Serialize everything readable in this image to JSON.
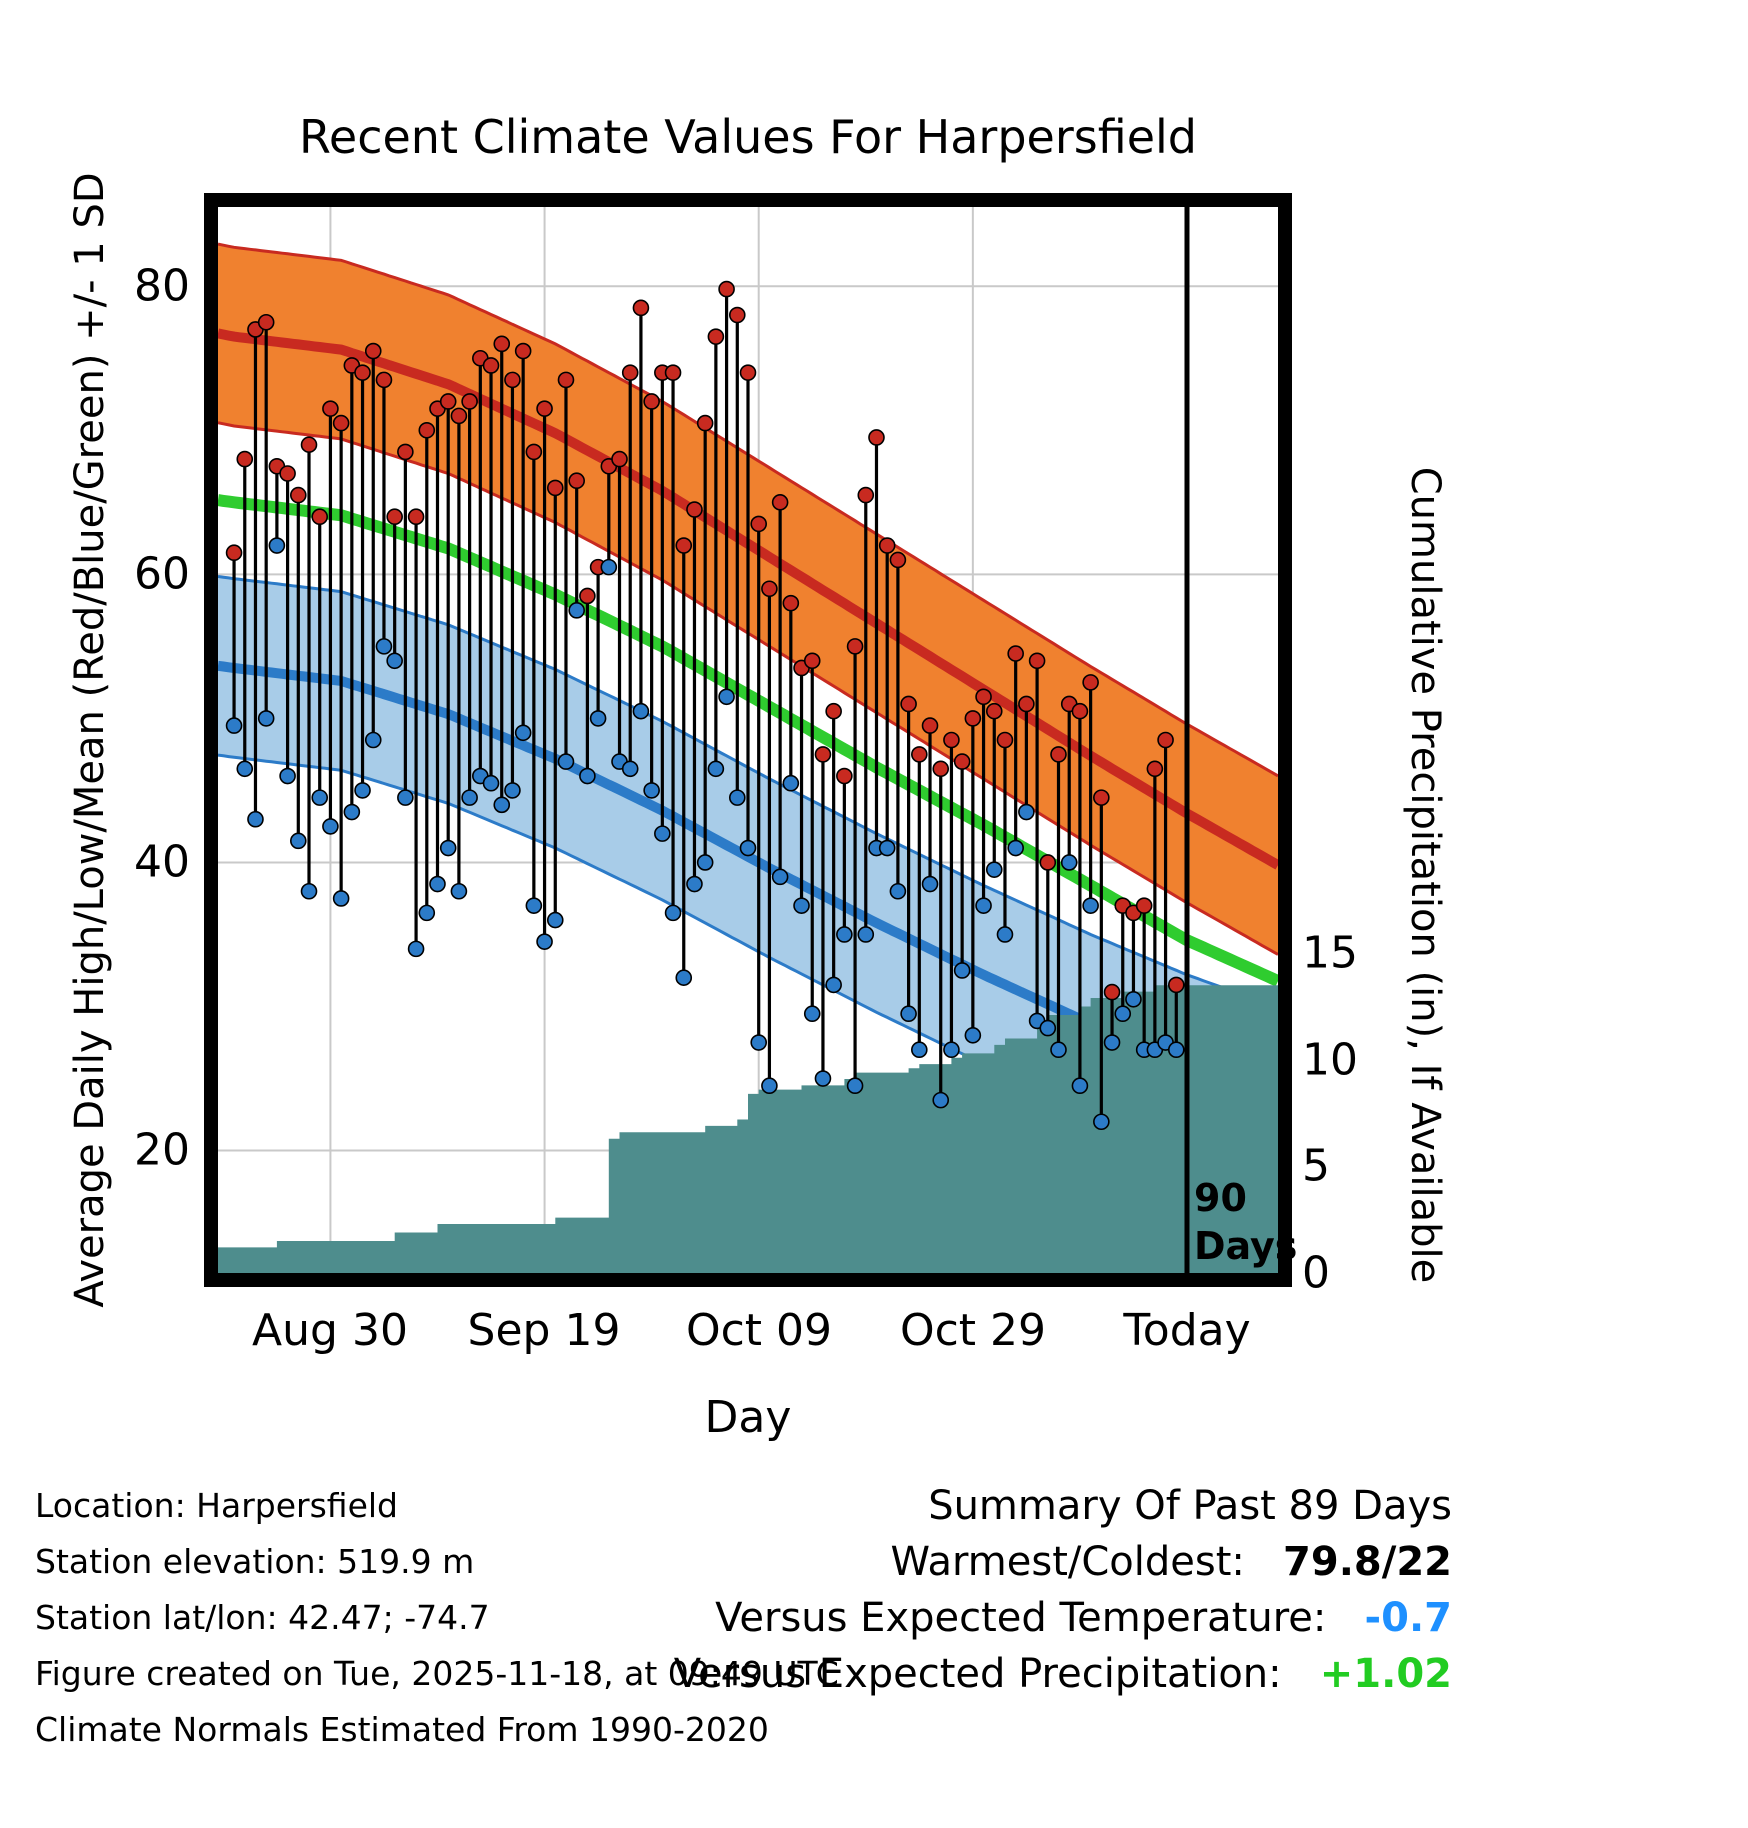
{
  "title": "Recent Climate Values For Harpersfield",
  "axes": {
    "y_left_label": "Average Daily High/Low/Mean (Red/Blue/Green) +/- 1 SD",
    "y_right_label": "Cumulative Precipitation (in), If Available",
    "x_label": "Day",
    "x_ticks": [
      "Aug 30",
      "Sep 19",
      "Oct 09",
      "Oct 29",
      "Today"
    ],
    "y_left_ticks": [
      "80",
      "60",
      "40",
      "20"
    ],
    "y_right_ticks": [
      "15",
      "10",
      "5",
      "0"
    ]
  },
  "annotations": {
    "marker_line1": "90",
    "marker_line2": "Days"
  },
  "footer_left": {
    "lines": [
      "Location: Harpersfield",
      "Station elevation: 519.9 m",
      "Station lat/lon: 42.47; -74.7",
      "Figure created on Tue, 2025-11-18, at 09:49 UTC",
      "Climate Normals Estimated From 1990-2020"
    ]
  },
  "summary": {
    "title": "Summary Of Past 89 Days",
    "warmest_coldest_label": "Warmest/Coldest:",
    "warmest_coldest_value": "79.8/22",
    "vs_temp_label": "Versus Expected Temperature:",
    "vs_temp_value": "-0.7",
    "vs_precip_label": "Versus Expected Precipitation:",
    "vs_precip_value": "+1.02"
  },
  "colors": {
    "high_band": "#F0812F",
    "high_line": "#C82A20",
    "low_band": "#A8CCE8",
    "low_line": "#2C7BC8",
    "mean_line": "#2FCC2F",
    "precip_fill": "#4E8D8D",
    "grid": "#C9C9C9",
    "bar": "#000000",
    "high_dot": "#C82A20",
    "low_dot": "#2C7BC8",
    "today_line": "#000000",
    "vs_temp_value_color": "#1E90FF",
    "vs_precip_value_color": "#22CC22"
  },
  "chart_data": {
    "type": "line",
    "title": "Recent Climate Values For Harpersfield",
    "xlabel": "Day",
    "ylabel_left": "Average Daily High/Low/Mean (Red/Blue/Green) +/- 1 SD",
    "ylabel_right": "Cumulative Precipitation (in), If Available",
    "x_range": [
      -1.5,
      97.5
    ],
    "temp_range": [
      11.5,
      85.5
    ],
    "precip_range": [
      0,
      50
    ],
    "x_tick_days": [
      9,
      29,
      49,
      69,
      89
    ],
    "x_tick_labels": [
      "Aug 30",
      "Sep 19",
      "Oct 09",
      "Oct 29",
      "Today"
    ],
    "temp_ticks": [
      20,
      40,
      60,
      80
    ],
    "precip_ticks": [
      0,
      5,
      10,
      15
    ],
    "today_day": 89,
    "normals": {
      "days": [
        -2,
        0,
        10,
        20,
        30,
        40,
        50,
        60,
        70,
        80,
        89,
        98
      ],
      "high_mean": [
        76.8,
        76.5,
        75.6,
        73.2,
        69.8,
        65.8,
        61.2,
        56.6,
        52.0,
        47.4,
        43.4,
        39.6
      ],
      "mean": [
        65.2,
        65.0,
        64.1,
        61.8,
        58.6,
        55.0,
        50.8,
        46.6,
        42.6,
        38.4,
        34.6,
        31.6
      ],
      "low_mean": [
        53.7,
        53.5,
        52.6,
        50.3,
        47.2,
        43.6,
        39.6,
        35.8,
        32.2,
        28.8,
        26.0,
        23.6
      ],
      "band_sd": 6.2
    },
    "daily": {
      "start_day": 0,
      "highs": [
        61.5,
        68,
        77,
        77.5,
        67.5,
        67,
        65.5,
        69,
        64,
        71.5,
        70.5,
        74.5,
        74,
        75.5,
        73.5,
        64,
        68.5,
        64,
        70,
        71.5,
        72,
        71,
        72,
        75,
        74.5,
        76,
        73.5,
        75.5,
        68.5,
        71.5,
        66,
        73.5,
        66.5,
        58.5,
        60.5,
        67.5,
        68,
        74,
        78.5,
        72,
        74,
        74,
        62,
        64.5,
        70.5,
        76.5,
        79.8,
        78,
        74,
        63.5,
        59,
        65,
        58,
        53.5,
        54,
        47.5,
        50.5,
        46,
        55,
        65.5,
        69.5,
        62,
        61,
        51,
        47.5,
        49.5,
        46.5,
        48.5,
        47,
        50,
        51.5,
        50.5,
        48.5,
        54.5,
        51,
        54,
        40,
        47.5,
        51,
        50.5,
        52.5,
        44.5,
        31,
        37,
        36.5,
        37,
        46.5,
        48.5,
        31.5
      ],
      "lows": [
        49.5,
        46.5,
        43,
        50,
        62,
        46,
        41.5,
        38,
        44.5,
        42.5,
        37.5,
        43.5,
        45,
        48.5,
        55,
        54,
        44.5,
        34,
        36.5,
        38.5,
        41,
        38,
        44.5,
        46,
        45.5,
        44,
        45,
        49,
        37,
        34.5,
        36,
        47,
        57.5,
        46,
        50,
        60.5,
        47,
        46.5,
        50.5,
        45,
        42,
        36.5,
        32,
        38.5,
        40,
        46.5,
        51.5,
        44.5,
        41,
        27.5,
        24.5,
        39,
        45.5,
        37,
        29.5,
        25,
        31.5,
        35,
        24.5,
        35,
        41,
        41,
        38,
        29.5,
        27,
        38.5,
        23.5,
        27,
        32.5,
        28,
        37,
        39.5,
        35,
        41,
        43.5,
        29,
        28.5,
        27,
        40,
        24.5,
        37,
        22,
        27.5,
        29.5,
        30.5,
        27,
        27,
        27.5,
        27
      ]
    },
    "precip_cumulative": [
      1.2,
      1.2,
      1.2,
      1.2,
      1.5,
      1.5,
      1.5,
      1.5,
      1.5,
      1.5,
      1.5,
      1.5,
      1.5,
      1.5,
      1.5,
      1.9,
      1.9,
      1.9,
      1.9,
      2.3,
      2.3,
      2.3,
      2.3,
      2.3,
      2.3,
      2.3,
      2.3,
      2.3,
      2.3,
      2.3,
      2.6,
      2.6,
      2.6,
      2.6,
      2.6,
      6.3,
      6.6,
      6.6,
      6.6,
      6.6,
      6.6,
      6.6,
      6.6,
      6.6,
      6.9,
      6.9,
      6.9,
      7.2,
      8.4,
      8.6,
      8.6,
      8.6,
      8.6,
      8.8,
      8.8,
      8.8,
      8.8,
      9.1,
      9.4,
      9.4,
      9.4,
      9.4,
      9.4,
      9.6,
      9.8,
      9.8,
      9.8,
      10.1,
      10.3,
      10.3,
      10.3,
      10.7,
      11.0,
      11.0,
      11.0,
      11.6,
      12.1,
      12.1,
      12.1,
      12.5,
      12.9,
      12.9,
      12.9,
      13.2,
      13.2,
      13.2,
      13.5,
      13.5,
      13.5
    ]
  }
}
